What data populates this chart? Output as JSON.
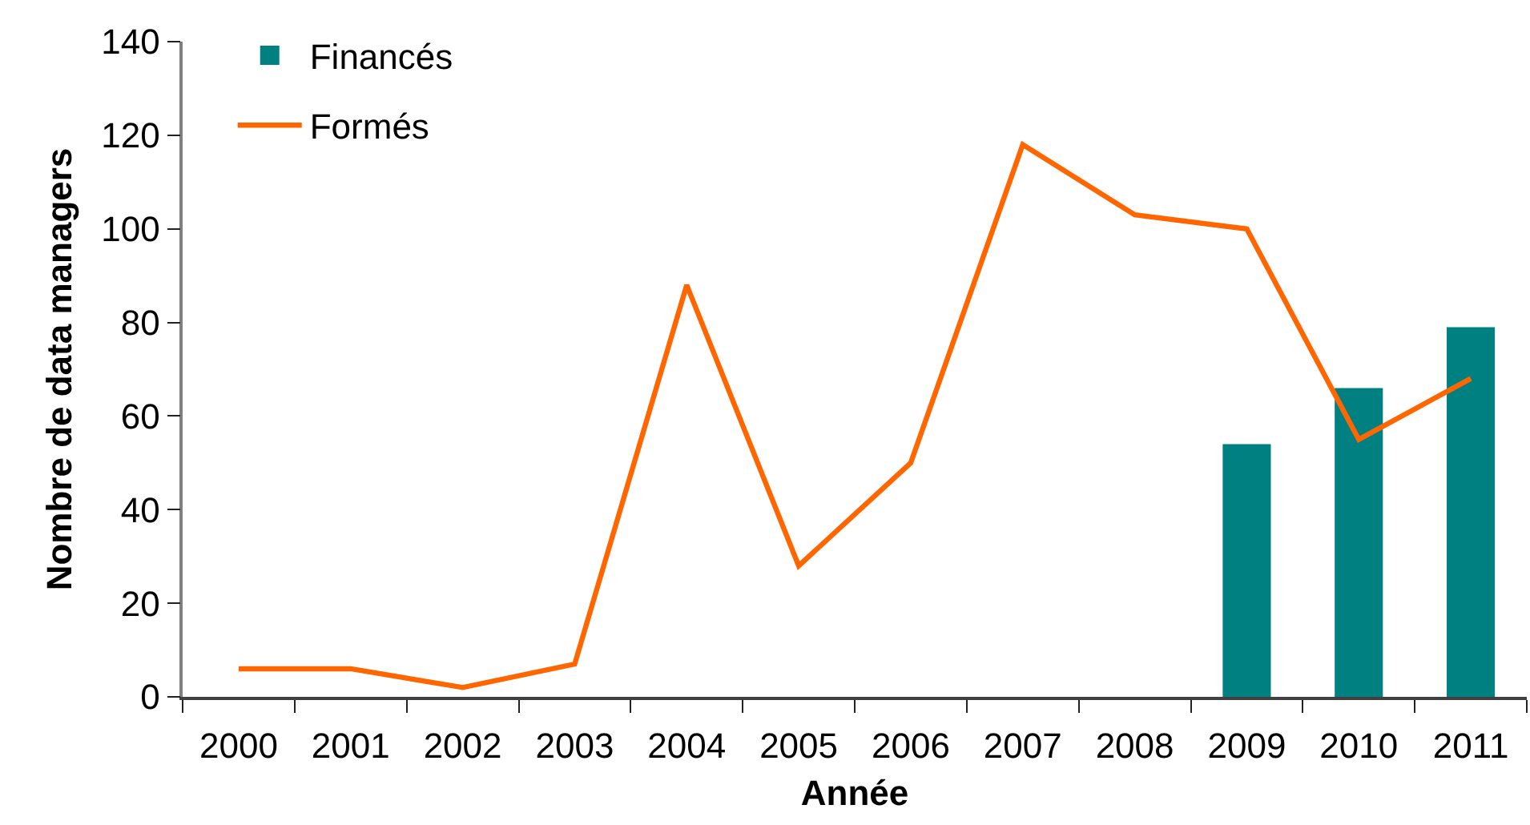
{
  "chart_data": {
    "type": "bar",
    "xlabel": "Année",
    "ylabel": "Nombre de data managers",
    "categories": [
      "2000",
      "2001",
      "2002",
      "2003",
      "2004",
      "2005",
      "2006",
      "2007",
      "2008",
      "2009",
      "2010",
      "2011"
    ],
    "series": [
      {
        "name": "Financés",
        "color": "#008080",
        "values": [
          null,
          null,
          null,
          null,
          null,
          null,
          null,
          null,
          null,
          54,
          66,
          79
        ]
      },
      {
        "name": "Formés",
        "type": "line",
        "color": "#ff6600",
        "values": [
          6,
          6,
          2,
          7,
          88,
          28,
          50,
          118,
          103,
          100,
          55,
          68
        ]
      }
    ],
    "ylim": [
      0,
      140
    ],
    "yticks": [
      0,
      20,
      40,
      60,
      80,
      100,
      120,
      140
    ],
    "grid": false,
    "legend": "top left"
  }
}
